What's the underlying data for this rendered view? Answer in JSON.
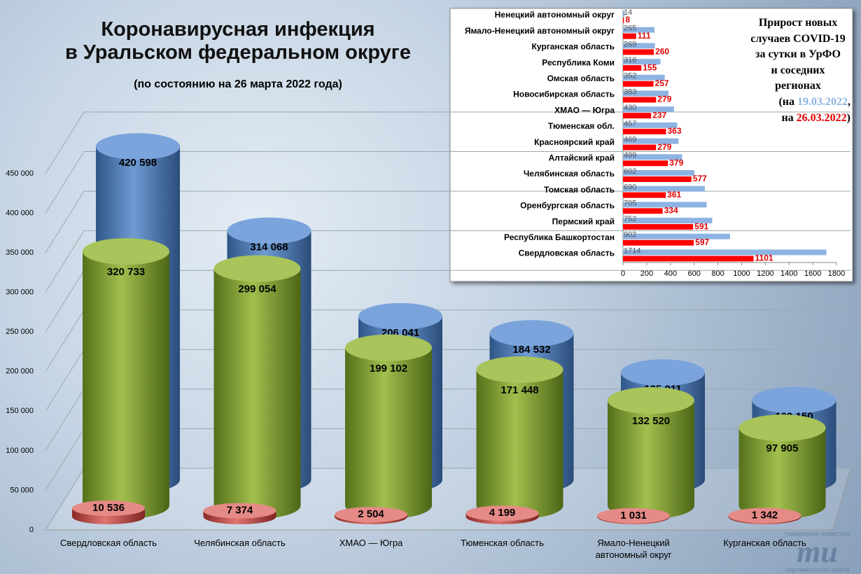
{
  "chart_data": [
    {
      "type": "cylinder",
      "title_lines": [
        "Коронавирусная инфекция",
        "в Уральском федеральном округе"
      ],
      "subtitle": "(по состоянию на 26 марта 2022 года)",
      "categories": [
        "Свердловская область",
        "Челябинская область",
        "ХМАО — Югра",
        "Тюменская область",
        "Ямало-Ненецкий автономный округ",
        "Курганская область"
      ],
      "series": [
        {
          "color": "#4f81bd",
          "values": [
            420598,
            314068,
            206041,
            184532,
            135011,
            100150
          ],
          "value_labels": [
            "420 598",
            "314 068",
            "206 041",
            "184 532",
            "135 011",
            "100 150"
          ]
        },
        {
          "color": "#7f9a2e",
          "values": [
            320733,
            299054,
            199102,
            171448,
            132520,
            97905
          ],
          "value_labels": [
            "320 733",
            "299 054",
            "199 102",
            "171 448",
            "132 520",
            "97 905"
          ]
        },
        {
          "color": "#c0504d",
          "values": [
            10536,
            7374,
            2504,
            4199,
            1031,
            1342
          ],
          "value_labels": [
            "10 536",
            "7 374",
            "2 504",
            "4 199",
            "1 031",
            "1 342"
          ]
        }
      ],
      "ylim": [
        0,
        450000
      ],
      "yticks": [
        0,
        {
          "value": 50000,
          "label": "50 000"
        },
        {
          "value": 100000,
          "label": "100 000"
        },
        {
          "value": 150000,
          "label": "150 000"
        },
        {
          "value": 200000,
          "label": "200 000"
        },
        {
          "value": 250000,
          "label": "250 000"
        },
        {
          "value": 300000,
          "label": "300 000"
        },
        {
          "value": 350000,
          "label": "350 000"
        },
        {
          "value": 400000,
          "label": "400 000"
        },
        {
          "value": 450000,
          "label": "450 000"
        }
      ],
      "grid": true
    },
    {
      "type": "barh",
      "title_lines": [
        "Прирост новых",
        "случаев COVID-19",
        "за сутки в УрФО",
        "и соседних",
        "регионах"
      ],
      "legend_text": {
        "before_first": "(на",
        "after_first": ",",
        "before_second": "на",
        "after_second": ")"
      },
      "categories": [
        "Ненецкий автономный округ",
        "Ямало-Ненецкий автономный округ",
        "Курганская область",
        "Республика Коми",
        "Омская область",
        "Новосибирская область",
        "ХМАО — Югра",
        "Тюменская обл.",
        "Красноярский край",
        "Алтайский край",
        "Челябинская область",
        "Томская область",
        "Оренбургская область",
        "Пермский край",
        "Республика Башкортостан",
        "Свердловская область"
      ],
      "series": [
        {
          "name": "19.03.2022",
          "color": "#8db3e2",
          "values": [
            14,
            265,
            269,
            316,
            352,
            383,
            430,
            457,
            469,
            499,
            602,
            690,
            705,
            752,
            902,
            1714
          ]
        },
        {
          "name": "26.03.2022",
          "color": "#ff0000",
          "values": [
            8,
            111,
            260,
            155,
            257,
            279,
            237,
            363,
            279,
            379,
            577,
            361,
            334,
            591,
            597,
            1101
          ]
        }
      ],
      "xlim": [
        0,
        1800
      ],
      "xticks": [
        0,
        200,
        400,
        600,
        800,
        1000,
        1200,
        1400,
        1600,
        1800
      ]
    }
  ],
  "watermark": {
    "top": "тюменские известия",
    "logo": "ти",
    "bottom": "парламентская газета"
  }
}
